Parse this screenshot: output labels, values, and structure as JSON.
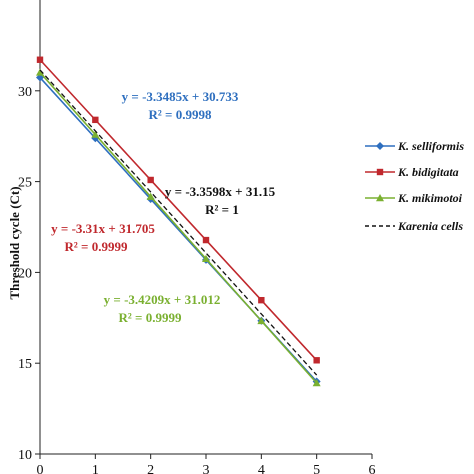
{
  "chart_data": {
    "type": "line",
    "x": [
      0,
      1,
      2,
      3,
      4,
      5
    ],
    "xlim": [
      0,
      6
    ],
    "ylim": [
      10,
      35
    ],
    "x_ticks": [
      "0",
      "1",
      "2",
      "3",
      "4",
      "5",
      "6"
    ],
    "y_ticks": [
      "10",
      "15",
      "20",
      "25",
      "30"
    ],
    "ylabel": "Threshold cycle (Ct)",
    "grid": false,
    "legend_position": "right",
    "series": [
      {
        "name": "K. selliformis",
        "color": "#2e6fbf",
        "marker": "diamond",
        "dash": "solid",
        "values": [
          30.73,
          27.39,
          24.04,
          20.69,
          17.34,
          13.99
        ],
        "equation": "y = -3.3485x + 30.733",
        "r2": "R² = 0.9998",
        "eq_color": "#2e6fbf"
      },
      {
        "name": "K. bidigitata",
        "color": "#c0282d",
        "marker": "square",
        "dash": "solid",
        "values": [
          31.71,
          28.4,
          25.09,
          21.78,
          18.47,
          15.16
        ],
        "equation": "y = -3.31x + 31.705",
        "r2": "R² = 0.9999",
        "eq_color": "#c0282d"
      },
      {
        "name": "K. mikimotoi",
        "color": "#7ab030",
        "marker": "triangle",
        "dash": "solid",
        "values": [
          31.01,
          27.59,
          24.17,
          20.75,
          17.33,
          13.91
        ],
        "equation": "y = -3.4209x + 31.012",
        "r2": "R² = 0.9999",
        "eq_color": "#7ab030"
      },
      {
        "name": "Karenia cells",
        "color": "#111111",
        "marker": "none",
        "dash": "dashed",
        "values": [
          31.15,
          27.79,
          24.43,
          21.07,
          17.71,
          14.35
        ],
        "equation": "y = -3.3598x + 31.15",
        "r2": "R² = 1",
        "eq_color": "#111111"
      }
    ]
  }
}
